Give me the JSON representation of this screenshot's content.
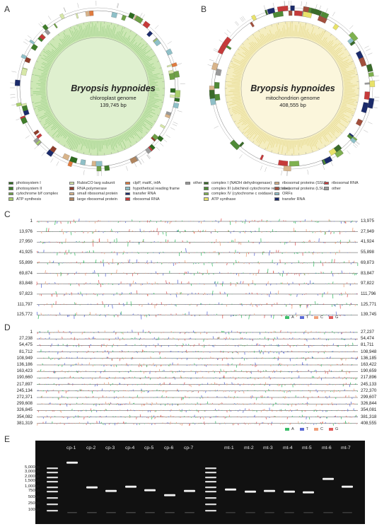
{
  "panels": {
    "a": "A",
    "b": "B",
    "c": "C",
    "d": "D",
    "e": "E"
  },
  "chloroplast": {
    "species": "Bryopsis hypnoides",
    "genome": "chloroplast genome",
    "size": "139,745 bp",
    "ring_color": "#cde8b5",
    "core_color": "#dff0cf",
    "legend": [
      {
        "label": "photosystem I",
        "color": "#2e6b1f"
      },
      {
        "label": "photosystem II",
        "color": "#3f7d2a"
      },
      {
        "label": "cytochrome b/f complex",
        "color": "#6ea046"
      },
      {
        "label": "ATP synthesis",
        "color": "#a9cf6b"
      },
      {
        "label": "RubisCO larg subunit",
        "color": "#d7e7a8"
      },
      {
        "label": "RNA polymerase",
        "color": "#8f3d2b"
      },
      {
        "label": "small ribosomal protein",
        "color": "#d8b48a"
      },
      {
        "label": "large ribosomal protein",
        "color": "#b0855e"
      },
      {
        "label": "clpP, matK, infA",
        "color": "#e07b3f"
      },
      {
        "label": "hypothetical reading frame",
        "color": "#8fc0c8"
      },
      {
        "label": "transfer RNA",
        "color": "#1b2b6b"
      },
      {
        "label": "ribosomal RNA",
        "color": "#c63a3a"
      },
      {
        "label": "other",
        "color": "#9a9a9a"
      }
    ]
  },
  "mitochondrion": {
    "species": "Bryopsis hypnoides",
    "genome": "mitochondrion genome",
    "size": "408,555 bp",
    "ring_color": "#f5eec0",
    "core_color": "#fbf6dc",
    "legend": [
      {
        "label": "complex I (NADH dehydrogenase)",
        "color": "#3a6b2a"
      },
      {
        "label": "complex III (ubichinol cytochrome reductase)",
        "color": "#4f8a36"
      },
      {
        "label": "complex IV (cytochrome c oxidase)",
        "color": "#7fb14f"
      },
      {
        "label": "ATP synthase",
        "color": "#e8e26a"
      },
      {
        "label": "ribosomal proteins (SSU)",
        "color": "#d8b48a"
      },
      {
        "label": "ribosomal proteins (LSU)",
        "color": "#a24f3c"
      },
      {
        "label": "ORFs",
        "color": "#8fc0c8"
      },
      {
        "label": "transfer RNA",
        "color": "#1b2b6b"
      },
      {
        "label": "ribosomal RNA",
        "color": "#c63a3a"
      },
      {
        "label": "other",
        "color": "#9a9a9a"
      }
    ]
  },
  "track_c": {
    "starts": [
      "1",
      "13,976",
      "27,950",
      "41,925",
      "55,899",
      "69,874",
      "83,848",
      "97,823",
      "111,797",
      "125,772"
    ],
    "ends": [
      "13,975",
      "27,949",
      "41,924",
      "55,898",
      "69,873",
      "83,847",
      "97,822",
      "111,796",
      "125,771",
      "139,745"
    ]
  },
  "track_d": {
    "starts": [
      "1",
      "27,238",
      "54,475",
      "81,712",
      "108,949",
      "136,186",
      "163,423",
      "190,660",
      "217,897",
      "245,134",
      "272,371",
      "299,608",
      "326,845",
      "354,082",
      "381,319"
    ],
    "ends": [
      "27,237",
      "54,474",
      "81,711",
      "108,948",
      "136,185",
      "163,422",
      "190,659",
      "217,896",
      "245,133",
      "272,370",
      "299,607",
      "326,844",
      "354,081",
      "381,318",
      "408,555"
    ]
  },
  "bases": [
    {
      "label": "A",
      "color": "#3cbf6a"
    },
    {
      "label": "T",
      "color": "#5b6bd6"
    },
    {
      "label": "C",
      "color": "#f0a07a"
    },
    {
      "label": "G",
      "color": "#e05b5b"
    }
  ],
  "gel": {
    "lanes_cp": [
      "cp-1",
      "cp-2",
      "cp-3",
      "cp-4",
      "cp-5",
      "cp-6",
      "cp-7"
    ],
    "lanes_mt": [
      "mt-1",
      "mt-2",
      "mt-3",
      "mt-4",
      "mt-5",
      "mt-6",
      "mt-7"
    ],
    "ladder": [
      "5,000bp",
      "3,000bp",
      "2,000bp",
      "1,500bp",
      "1,000bp",
      "750bp",
      "500bp",
      "250bp",
      "100bp"
    ]
  }
}
